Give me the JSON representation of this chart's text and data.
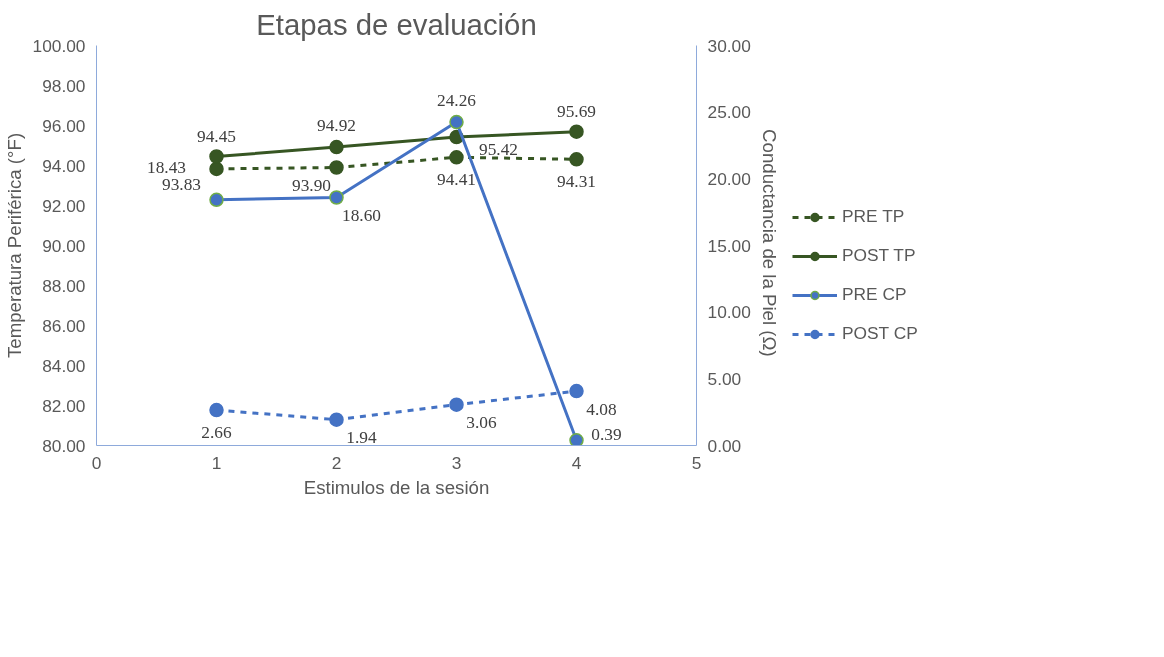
{
  "chart_data": {
    "type": "line",
    "title": "Etapas de evaluación",
    "xlabel": "Estimulos de la sesión",
    "ylabel": "Temperatura Periférica (°F)",
    "y2label": "Conductancia de la Piel  (Ω)",
    "x": [
      1,
      2,
      3,
      4
    ],
    "xlim": [
      0,
      5
    ],
    "xticks": [
      0,
      1,
      2,
      3,
      4,
      5
    ],
    "ylim": [
      80,
      100
    ],
    "yticks": [
      {
        "value": 80,
        "label": "80.00"
      },
      {
        "value": 82,
        "label": "82.00"
      },
      {
        "value": 84,
        "label": "84.00"
      },
      {
        "value": 86,
        "label": "86.00"
      },
      {
        "value": 88,
        "label": "88.00"
      },
      {
        "value": 90,
        "label": "90.00"
      },
      {
        "value": 92,
        "label": "92.00"
      },
      {
        "value": 94,
        "label": "94.00"
      },
      {
        "value": 96,
        "label": "96.00"
      },
      {
        "value": 98,
        "label": "98.00"
      },
      {
        "value": 100,
        "label": "100.00"
      }
    ],
    "y2lim": [
      0,
      30
    ],
    "y2ticks": [
      {
        "value": 0,
        "label": "0.00"
      },
      {
        "value": 5,
        "label": "5.00"
      },
      {
        "value": 10,
        "label": "10.00"
      },
      {
        "value": 15,
        "label": "15.00"
      },
      {
        "value": 20,
        "label": "20.00"
      },
      {
        "value": 25,
        "label": "25.00"
      },
      {
        "value": 30,
        "label": "30.00"
      }
    ],
    "grid": false,
    "legend": "right",
    "marker": "circle",
    "series": [
      {
        "name": "PRE TP",
        "color": "#375623",
        "line_style": "dashed",
        "values": [
          93.83,
          93.9,
          94.41,
          94.31
        ],
        "value_labels": [
          "93.83",
          "93.90",
          "94.41",
          "94.31"
        ]
      },
      {
        "name": "POST TP",
        "color": "#375623",
        "line_style": "solid",
        "values": [
          94.45,
          94.92,
          95.42,
          95.69
        ],
        "value_labels": [
          "94.45",
          "94.92",
          "95.42",
          "95.69"
        ]
      },
      {
        "name": "PRE CP",
        "color": "#4472c4",
        "line_style": "solid",
        "axis": "y2",
        "values": [
          18.43,
          18.6,
          24.26,
          0.39
        ],
        "value_labels": [
          "18.43",
          "18.60",
          "24.26",
          "0.39"
        ]
      },
      {
        "name": "POST CP",
        "color": "#4472c4",
        "line_style": "dashed",
        "axis": "y2",
        "values": [
          2.66,
          1.94,
          3.06,
          4.08
        ],
        "value_labels": [
          "2.66",
          "1.94",
          "3.06",
          "4.08"
        ]
      }
    ]
  }
}
